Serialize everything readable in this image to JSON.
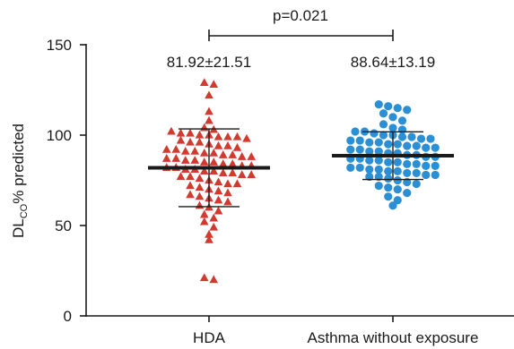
{
  "chart_data": {
    "type": "scatter",
    "ylabel": {
      "main": "DL",
      "sub": "CO",
      "rest": "% predicted"
    },
    "ylim": [
      0,
      150
    ],
    "yticks": [
      "0",
      "50",
      "100",
      "150"
    ],
    "categories": [
      "HDA",
      "Asthma without exposure"
    ],
    "stats": {
      "p_label": "p=0.021"
    },
    "series": [
      {
        "category": "HDA",
        "marker": "triangle",
        "color": "#d23a30",
        "mean": 81.92,
        "sd": 21.51,
        "label": "81.92±21.51",
        "values": [
          129,
          128,
          122,
          113,
          108,
          104,
          103,
          102,
          101,
          101,
          100,
          100,
          99,
          99,
          99,
          98,
          97,
          96,
          96,
          95,
          94,
          94,
          93,
          92,
          92,
          91,
          91,
          90,
          90,
          89,
          89,
          88,
          88,
          87,
          87,
          86,
          86,
          85,
          85,
          84,
          84,
          83,
          83,
          82,
          82,
          81,
          81,
          80,
          80,
          79,
          79,
          78,
          78,
          77,
          77,
          76,
          75,
          74,
          73,
          73,
          72,
          71,
          70,
          69,
          68,
          67,
          66,
          65,
          64,
          63,
          61,
          60,
          58,
          56,
          54,
          52,
          49,
          45,
          42,
          21,
          20
        ]
      },
      {
        "category": "Asthma without exposure",
        "marker": "circle",
        "color": "#2b8fd6",
        "mean": 88.64,
        "sd": 13.19,
        "label": "88.64±13.19",
        "values": [
          117,
          116,
          115,
          114,
          112,
          110,
          108,
          106,
          104,
          103,
          102,
          102,
          101,
          100,
          100,
          99,
          99,
          98,
          98,
          97,
          97,
          96,
          96,
          95,
          95,
          94,
          94,
          93,
          93,
          92,
          92,
          91,
          91,
          90,
          90,
          89,
          89,
          88,
          88,
          87,
          87,
          86,
          86,
          85,
          85,
          84,
          84,
          83,
          83,
          82,
          82,
          81,
          81,
          80,
          80,
          79,
          79,
          78,
          78,
          77,
          77,
          76,
          75,
          74,
          73,
          72,
          71,
          70,
          68,
          66,
          64,
          61
        ]
      }
    ]
  }
}
